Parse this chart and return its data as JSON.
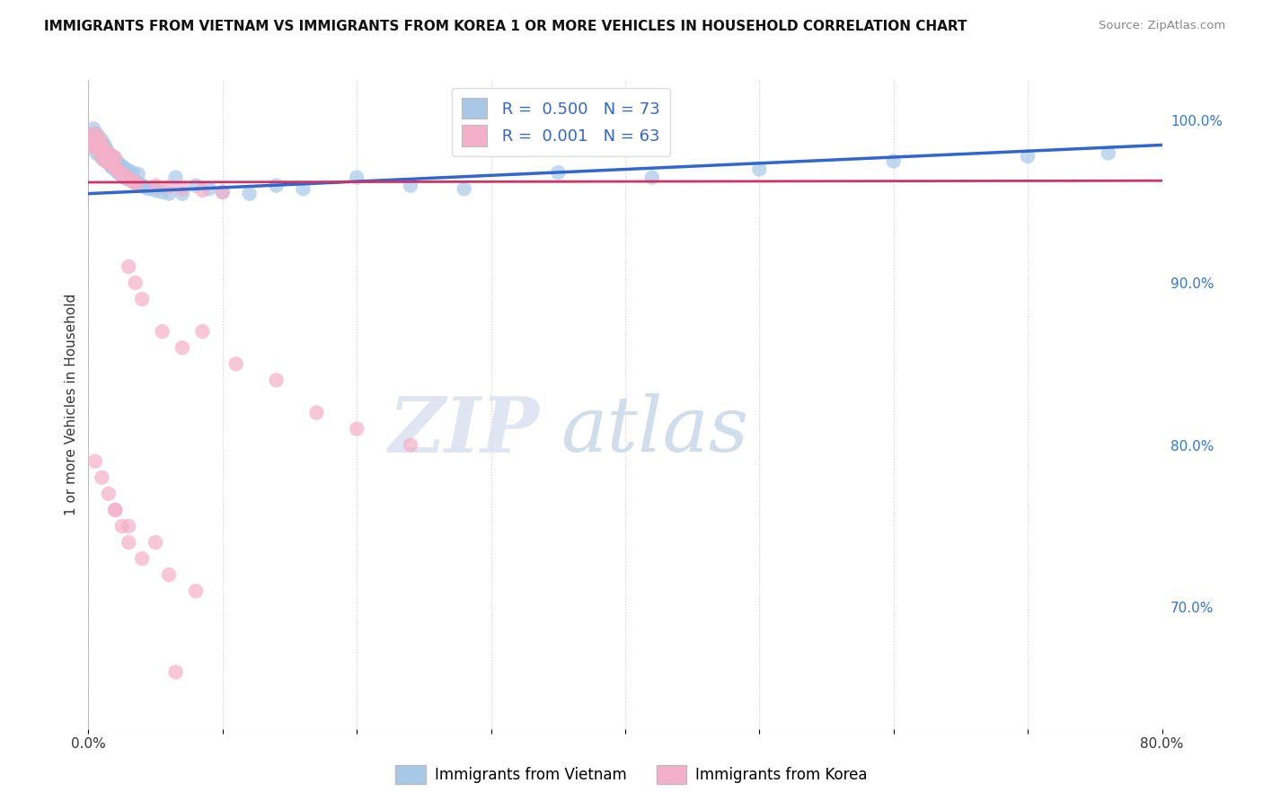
{
  "title": "IMMIGRANTS FROM VIETNAM VS IMMIGRANTS FROM KOREA 1 OR MORE VEHICLES IN HOUSEHOLD CORRELATION CHART",
  "source": "Source: ZipAtlas.com",
  "ylabel": "1 or more Vehicles in Household",
  "x_min": 0.0,
  "x_max": 0.8,
  "y_min": 0.625,
  "y_max": 1.025,
  "y_ticks_right": [
    0.7,
    0.8,
    0.9,
    1.0
  ],
  "y_tick_labels_right": [
    "70.0%",
    "80.0%",
    "90.0%",
    "100.0%"
  ],
  "legend_vietnam": "Immigrants from Vietnam",
  "legend_korea": "Immigrants from Korea",
  "R_vietnam": 0.5,
  "N_vietnam": 73,
  "R_korea": 0.001,
  "N_korea": 63,
  "color_vietnam": "#a8c8e8",
  "color_korea": "#f4b0c8",
  "trendline_vietnam": "#3366cc",
  "trendline_korea": "#cc3366",
  "watermark_zip": "ZIP",
  "watermark_atlas": "atlas",
  "vietnam_x": [
    0.002,
    0.003,
    0.004,
    0.005,
    0.005,
    0.006,
    0.006,
    0.007,
    0.007,
    0.008,
    0.008,
    0.009,
    0.009,
    0.01,
    0.01,
    0.011,
    0.011,
    0.012,
    0.012,
    0.013,
    0.013,
    0.014,
    0.014,
    0.015,
    0.015,
    0.016,
    0.016,
    0.017,
    0.018,
    0.018,
    0.019,
    0.02,
    0.02,
    0.021,
    0.022,
    0.022,
    0.023,
    0.024,
    0.025,
    0.025,
    0.026,
    0.027,
    0.028,
    0.029,
    0.03,
    0.032,
    0.033,
    0.035,
    0.037,
    0.038,
    0.04,
    0.042,
    0.045,
    0.05,
    0.055,
    0.06,
    0.065,
    0.07,
    0.08,
    0.09,
    0.1,
    0.12,
    0.14,
    0.16,
    0.2,
    0.24,
    0.28,
    0.35,
    0.42,
    0.5,
    0.6,
    0.7,
    0.76
  ],
  "vietnam_y": [
    0.99,
    0.985,
    0.995,
    0.988,
    0.992,
    0.98,
    0.987,
    0.985,
    0.991,
    0.983,
    0.989,
    0.978,
    0.985,
    0.982,
    0.988,
    0.976,
    0.983,
    0.979,
    0.985,
    0.977,
    0.983,
    0.975,
    0.981,
    0.974,
    0.98,
    0.973,
    0.979,
    0.972,
    0.978,
    0.971,
    0.977,
    0.97,
    0.975,
    0.969,
    0.974,
    0.968,
    0.973,
    0.967,
    0.972,
    0.966,
    0.971,
    0.965,
    0.97,
    0.964,
    0.969,
    0.963,
    0.968,
    0.962,
    0.967,
    0.961,
    0.96,
    0.959,
    0.958,
    0.957,
    0.956,
    0.955,
    0.965,
    0.955,
    0.96,
    0.958,
    0.956,
    0.955,
    0.96,
    0.958,
    0.965,
    0.96,
    0.958,
    0.968,
    0.965,
    0.97,
    0.975,
    0.978,
    0.98
  ],
  "korea_x": [
    0.002,
    0.003,
    0.004,
    0.005,
    0.005,
    0.006,
    0.007,
    0.007,
    0.008,
    0.009,
    0.009,
    0.01,
    0.01,
    0.011,
    0.012,
    0.012,
    0.013,
    0.014,
    0.015,
    0.016,
    0.017,
    0.018,
    0.019,
    0.02,
    0.02,
    0.022,
    0.024,
    0.025,
    0.027,
    0.028,
    0.03,
    0.032,
    0.034,
    0.036,
    0.05,
    0.06,
    0.07,
    0.085,
    0.1,
    0.03,
    0.035,
    0.04,
    0.055,
    0.07,
    0.085,
    0.11,
    0.14,
    0.17,
    0.2,
    0.24,
    0.005,
    0.01,
    0.015,
    0.02,
    0.025,
    0.03,
    0.04,
    0.06,
    0.08,
    0.02,
    0.03,
    0.05,
    0.065
  ],
  "korea_y": [
    0.99,
    0.985,
    0.992,
    0.988,
    0.983,
    0.987,
    0.984,
    0.99,
    0.982,
    0.987,
    0.98,
    0.985,
    0.978,
    0.983,
    0.976,
    0.981,
    0.975,
    0.98,
    0.974,
    0.979,
    0.973,
    0.978,
    0.972,
    0.977,
    0.971,
    0.969,
    0.968,
    0.967,
    0.966,
    0.965,
    0.964,
    0.963,
    0.962,
    0.961,
    0.96,
    0.959,
    0.958,
    0.957,
    0.956,
    0.91,
    0.9,
    0.89,
    0.87,
    0.86,
    0.87,
    0.85,
    0.84,
    0.82,
    0.81,
    0.8,
    0.79,
    0.78,
    0.77,
    0.76,
    0.75,
    0.74,
    0.73,
    0.72,
    0.71,
    0.76,
    0.75,
    0.74,
    0.66
  ],
  "viet_trend_x0": 0.0,
  "viet_trend_y0": 0.955,
  "viet_trend_x1": 0.8,
  "viet_trend_y1": 0.985,
  "korea_trend_x0": 0.0,
  "korea_trend_y0": 0.962,
  "korea_trend_x1": 0.8,
  "korea_trend_y1": 0.963
}
